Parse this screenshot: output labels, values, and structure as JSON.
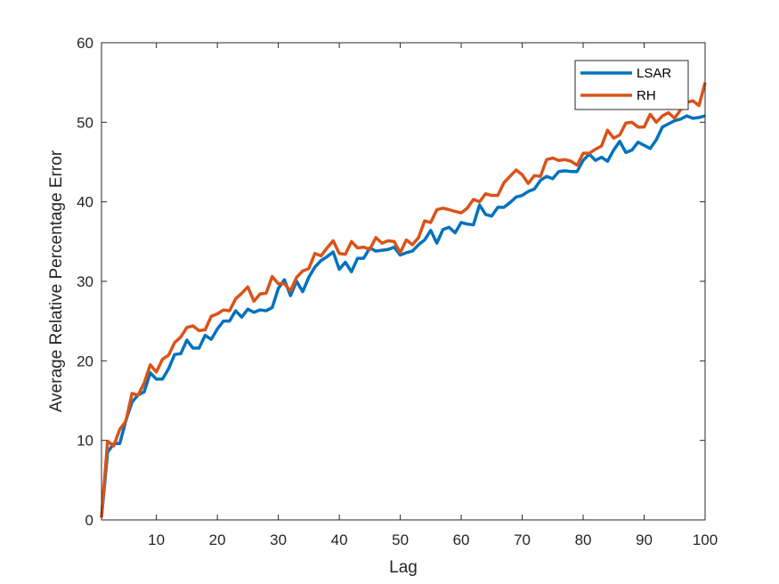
{
  "chart_data": {
    "type": "line",
    "title": "",
    "xlabel": "Lag",
    "ylabel": "Average Relative Percentage Error",
    "xlim": [
      1,
      100
    ],
    "ylim": [
      0,
      60
    ],
    "xticks": [
      10,
      20,
      30,
      40,
      50,
      60,
      70,
      80,
      90,
      100
    ],
    "yticks": [
      0,
      10,
      20,
      30,
      40,
      50,
      60
    ],
    "grid": false,
    "legend_position": "top-right",
    "x": [
      1,
      2,
      3,
      4,
      5,
      6,
      7,
      8,
      9,
      10,
      11,
      12,
      13,
      14,
      15,
      16,
      17,
      18,
      19,
      20,
      21,
      22,
      23,
      24,
      25,
      26,
      27,
      28,
      29,
      30,
      31,
      32,
      33,
      34,
      35,
      36,
      37,
      38,
      39,
      40,
      41,
      42,
      43,
      44,
      45,
      46,
      47,
      48,
      49,
      50,
      51,
      52,
      53,
      54,
      55,
      56,
      57,
      58,
      59,
      60,
      61,
      62,
      63,
      64,
      65,
      66,
      67,
      68,
      69,
      70,
      71,
      72,
      73,
      74,
      75,
      76,
      77,
      78,
      79,
      80,
      81,
      82,
      83,
      84,
      85,
      86,
      87,
      88,
      89,
      90,
      91,
      92,
      93,
      94,
      95,
      96,
      97,
      98,
      99,
      100
    ],
    "series": [
      {
        "name": "LSAR",
        "color": "#0072BD",
        "values": [
          0.3,
          8.5,
          9.6,
          9.6,
          12.5,
          14.8,
          15.7,
          16.1,
          18.5,
          17.7,
          17.7,
          19.0,
          20.8,
          20.9,
          22.6,
          21.6,
          21.6,
          23.2,
          22.7,
          24.0,
          25.0,
          25.0,
          26.3,
          25.5,
          26.5,
          26.1,
          26.4,
          26.3,
          26.7,
          29.1,
          30.2,
          28.2,
          30.0,
          28.7,
          30.5,
          31.8,
          32.6,
          33.1,
          33.7,
          31.5,
          32.4,
          31.2,
          32.9,
          32.9,
          34.2,
          33.8,
          33.9,
          34.0,
          34.3,
          33.3,
          33.6,
          33.8,
          34.6,
          35.2,
          36.4,
          34.8,
          36.5,
          36.8,
          36.1,
          37.4,
          37.2,
          37.1,
          39.6,
          38.4,
          38.2,
          39.3,
          39.3,
          39.9,
          40.6,
          40.8,
          41.3,
          41.6,
          42.7,
          43.2,
          42.9,
          43.8,
          43.9,
          43.8,
          43.8,
          45.2,
          46.0,
          45.2,
          45.6,
          45.1,
          46.5,
          47.6,
          46.2,
          46.5,
          47.5,
          47.1,
          46.7,
          47.8,
          49.4,
          49.8,
          50.2,
          50.4,
          50.8,
          50.5,
          50.6,
          50.8
        ]
      },
      {
        "name": "RH",
        "color": "#D95319",
        "values": [
          0.3,
          9.9,
          9.3,
          11.4,
          12.4,
          15.9,
          15.7,
          17.2,
          19.5,
          18.6,
          20.2,
          20.7,
          22.3,
          23.0,
          24.2,
          24.4,
          23.8,
          23.9,
          25.6,
          25.9,
          26.4,
          26.3,
          27.8,
          28.5,
          29.3,
          27.5,
          28.4,
          28.5,
          30.6,
          29.7,
          29.7,
          28.8,
          30.5,
          31.3,
          31.6,
          33.5,
          33.2,
          34.2,
          35.1,
          33.5,
          33.4,
          35.0,
          34.2,
          34.3,
          34.0,
          35.5,
          34.8,
          35.1,
          35.0,
          33.6,
          35.2,
          34.6,
          35.5,
          37.6,
          37.4,
          39.0,
          39.2,
          39.0,
          38.8,
          38.6,
          39.2,
          40.3,
          40.0,
          41.0,
          40.8,
          40.8,
          42.4,
          43.2,
          44.0,
          43.4,
          42.3,
          43.3,
          43.2,
          45.3,
          45.5,
          45.2,
          45.3,
          45.1,
          44.6,
          46.1,
          46.1,
          46.6,
          47.0,
          49.0,
          48.0,
          48.4,
          49.9,
          50.0,
          49.4,
          49.4,
          51.0,
          50.0,
          50.8,
          51.2,
          50.5,
          51.6,
          52.5,
          52.7,
          52.1,
          55.0
        ]
      }
    ]
  }
}
